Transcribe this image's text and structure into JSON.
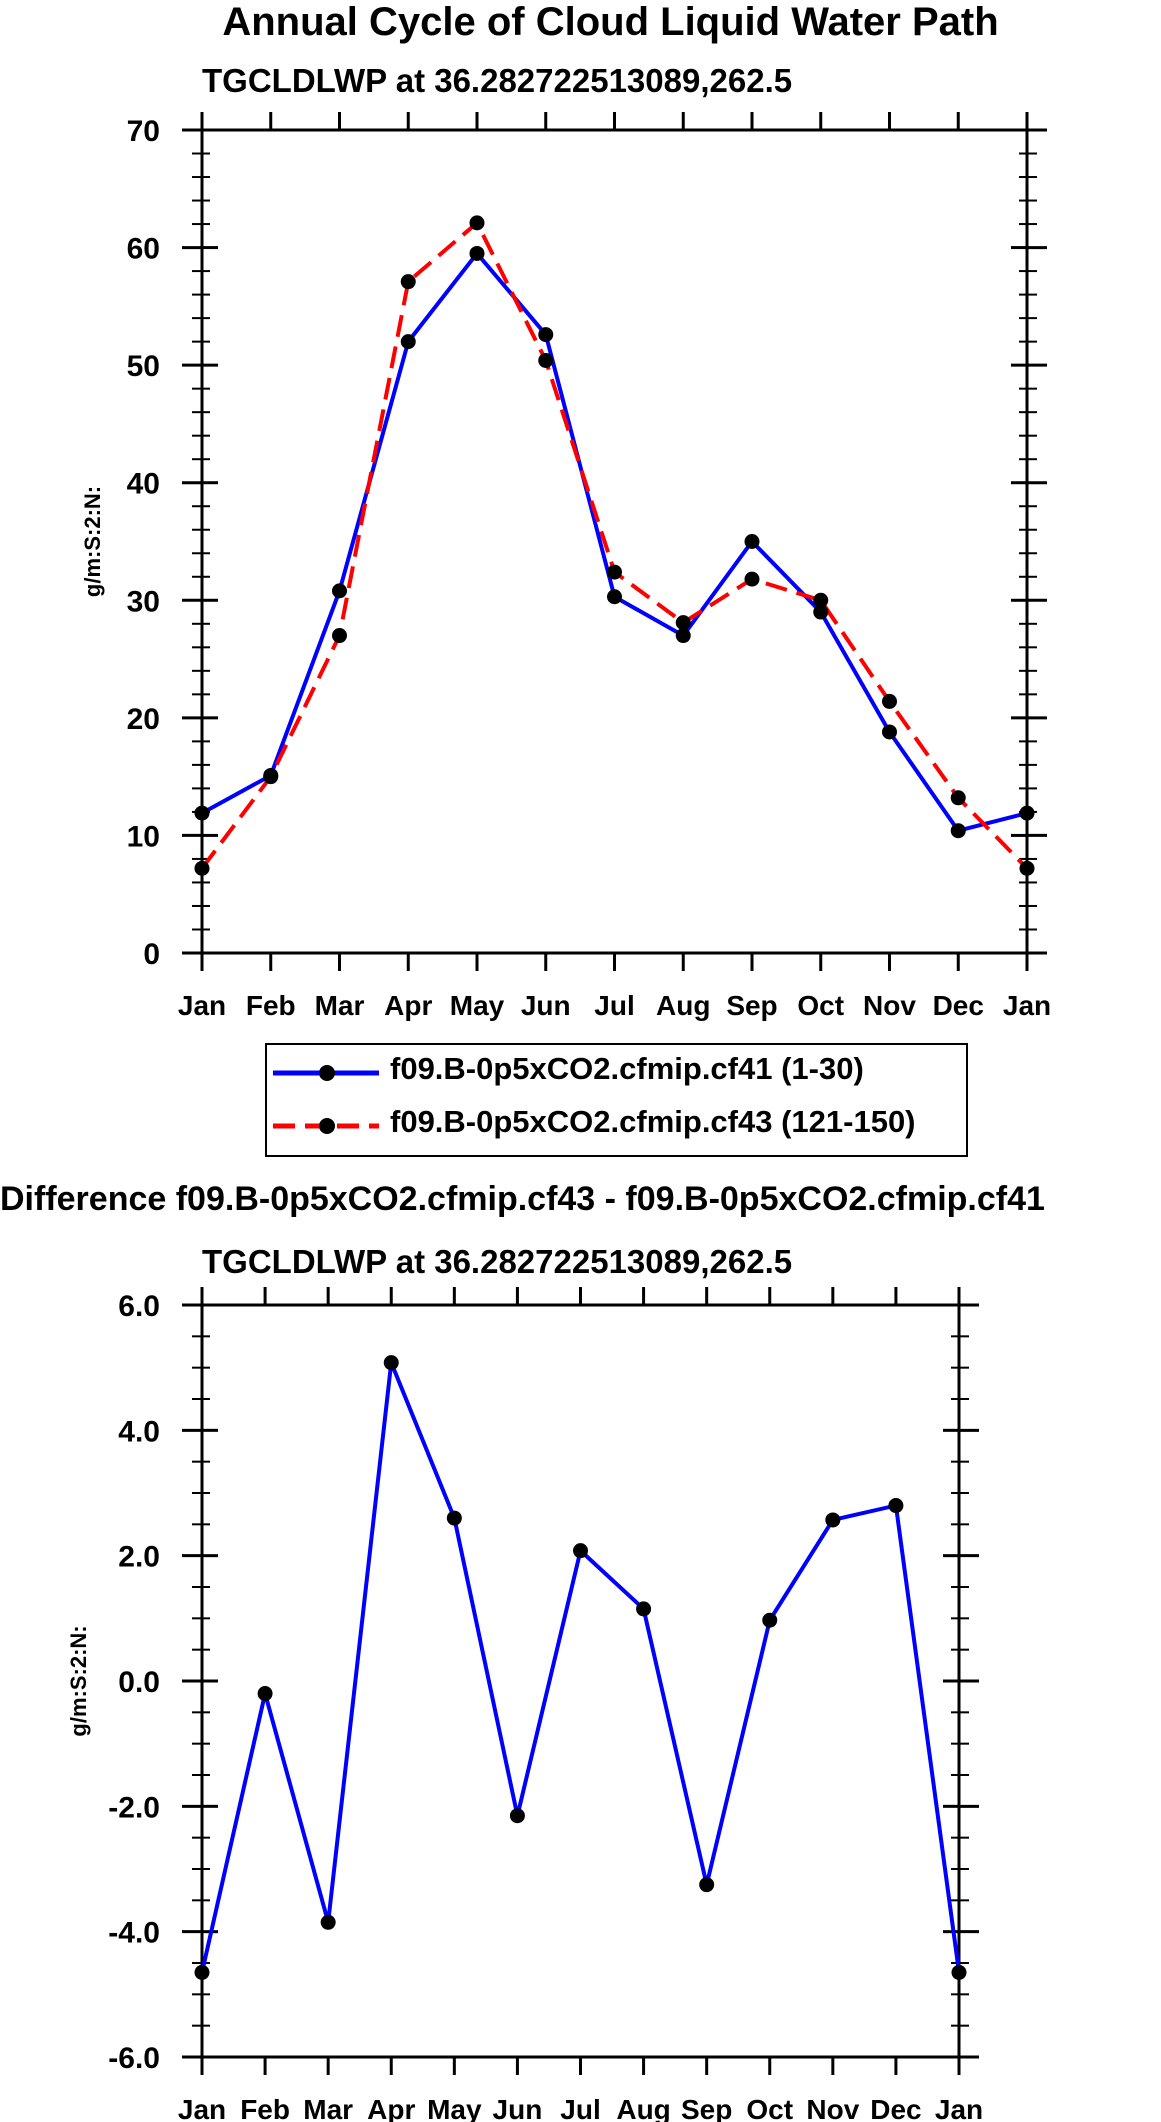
{
  "charts_text": {
    "top_title": "Annual Cycle of Cloud Liquid Water Path",
    "top_subtitle": "TGCLDLWP at 36.282722513089,262.5",
    "bottom_title": "Difference f09.B-0p5xCO2.cfmip.cf43 - f09.B-0p5xCO2.cfmip.cf41",
    "bottom_subtitle": "TGCLDLWP at 36.282722513089,262.5"
  },
  "legend": [
    {
      "label": "f09.B-0p5xCO2.cfmip.cf41 (1-30)",
      "color": "#0000ff",
      "dash": "solid"
    },
    {
      "label": "f09.B-0p5xCO2.cfmip.cf43 (121-150)",
      "color": "#ff0000",
      "dash": "dashed"
    }
  ],
  "chart_data": [
    {
      "type": "line",
      "title": "Annual Cycle of Cloud Liquid Water Path",
      "subtitle": "TGCLDLWP at 36.282722513089,262.5",
      "xlabel": "",
      "ylabel": "g/m:S:2:N:",
      "categories": [
        "Jan",
        "Feb",
        "Mar",
        "Apr",
        "May",
        "Jun",
        "Jul",
        "Aug",
        "Sep",
        "Oct",
        "Nov",
        "Dec",
        "Jan"
      ],
      "ylim": [
        0,
        70
      ],
      "yticks": [
        "0",
        "10",
        "20",
        "30",
        "40",
        "50",
        "60",
        "70"
      ],
      "series": [
        {
          "name": "f09.B-0p5xCO2.cfmip.cf41 (1-30)",
          "color": "#0000ff",
          "dash": "solid",
          "values": [
            11.9,
            15.1,
            30.8,
            52.0,
            59.5,
            52.6,
            30.3,
            27.0,
            35.0,
            29.0,
            18.8,
            10.4,
            11.9
          ]
        },
        {
          "name": "f09.B-0p5xCO2.cfmip.cf43 (121-150)",
          "color": "#ff0000",
          "dash": "dashed",
          "values": [
            7.2,
            15.0,
            27.0,
            57.1,
            62.1,
            50.4,
            32.4,
            28.1,
            31.8,
            30.0,
            21.4,
            13.2,
            7.2
          ]
        }
      ]
    },
    {
      "type": "line",
      "title": "Difference f09.B-0p5xCO2.cfmip.cf43 - f09.B-0p5xCO2.cfmip.cf41",
      "subtitle": "TGCLDLWP at 36.282722513089,262.5",
      "xlabel": "",
      "ylabel": "g/m:S:2:N:",
      "categories": [
        "Jan",
        "Feb",
        "Mar",
        "Apr",
        "May",
        "Jun",
        "Jul",
        "Aug",
        "Sep",
        "Oct",
        "Nov",
        "Dec",
        "Jan"
      ],
      "ylim": [
        -6,
        6
      ],
      "yticks": [
        "-6.0",
        "-4.0",
        "-2.0",
        "0.0",
        "2.0",
        "4.0",
        "6.0"
      ],
      "series": [
        {
          "name": "difference",
          "color": "#0000ff",
          "dash": "solid",
          "values": [
            -4.65,
            -0.2,
            -3.85,
            5.08,
            2.6,
            -2.15,
            2.08,
            1.15,
            -3.25,
            0.97,
            2.57,
            2.8,
            -4.65
          ]
        }
      ]
    }
  ]
}
